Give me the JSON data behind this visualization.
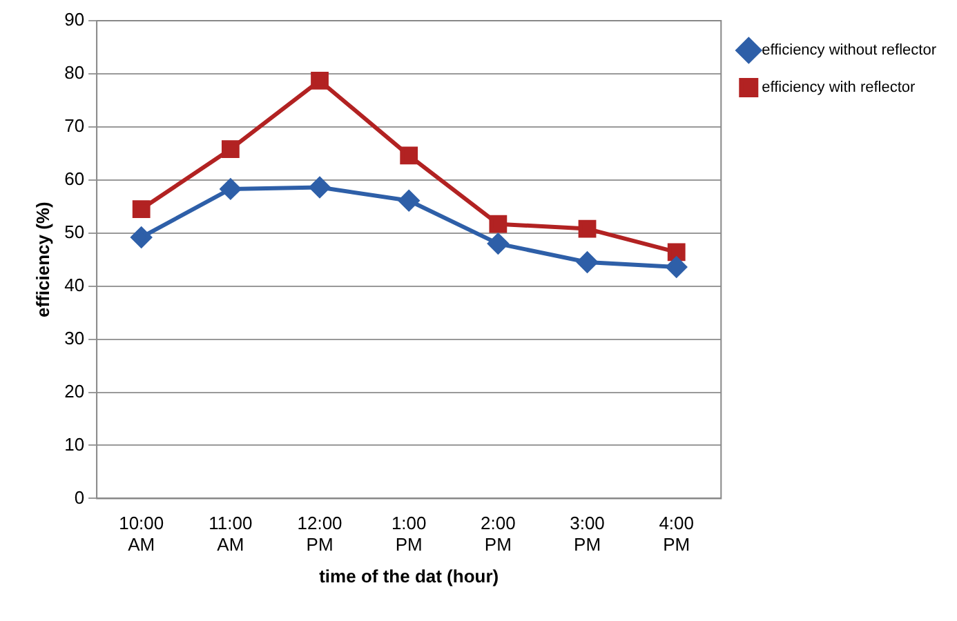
{
  "chart_data": {
    "type": "line",
    "xlabel": "time of the dat (hour)",
    "ylabel": "efficiency (%)",
    "categories": [
      "10:00 AM",
      "11:00 AM",
      "12:00 PM",
      "1:00 PM",
      "2:00 PM",
      "3:00 PM",
      "4:00 PM"
    ],
    "series": [
      {
        "name": "efficiency without reflector",
        "color": "#2e5fa8",
        "marker": "diamond",
        "values": [
          49.2,
          58.3,
          58.6,
          56.1,
          48,
          44.5,
          43.6
        ]
      },
      {
        "name": "efficiency with reflector",
        "color": "#b22222",
        "marker": "square",
        "values": [
          54.5,
          65.8,
          78.7,
          64.6,
          51.7,
          50.8,
          46.4
        ]
      }
    ],
    "ylim": [
      0,
      90
    ],
    "yticks": [
      0,
      10,
      20,
      30,
      40,
      50,
      60,
      70,
      80,
      90
    ],
    "grid": "y",
    "legend": "top right",
    "line_style": "solid"
  }
}
